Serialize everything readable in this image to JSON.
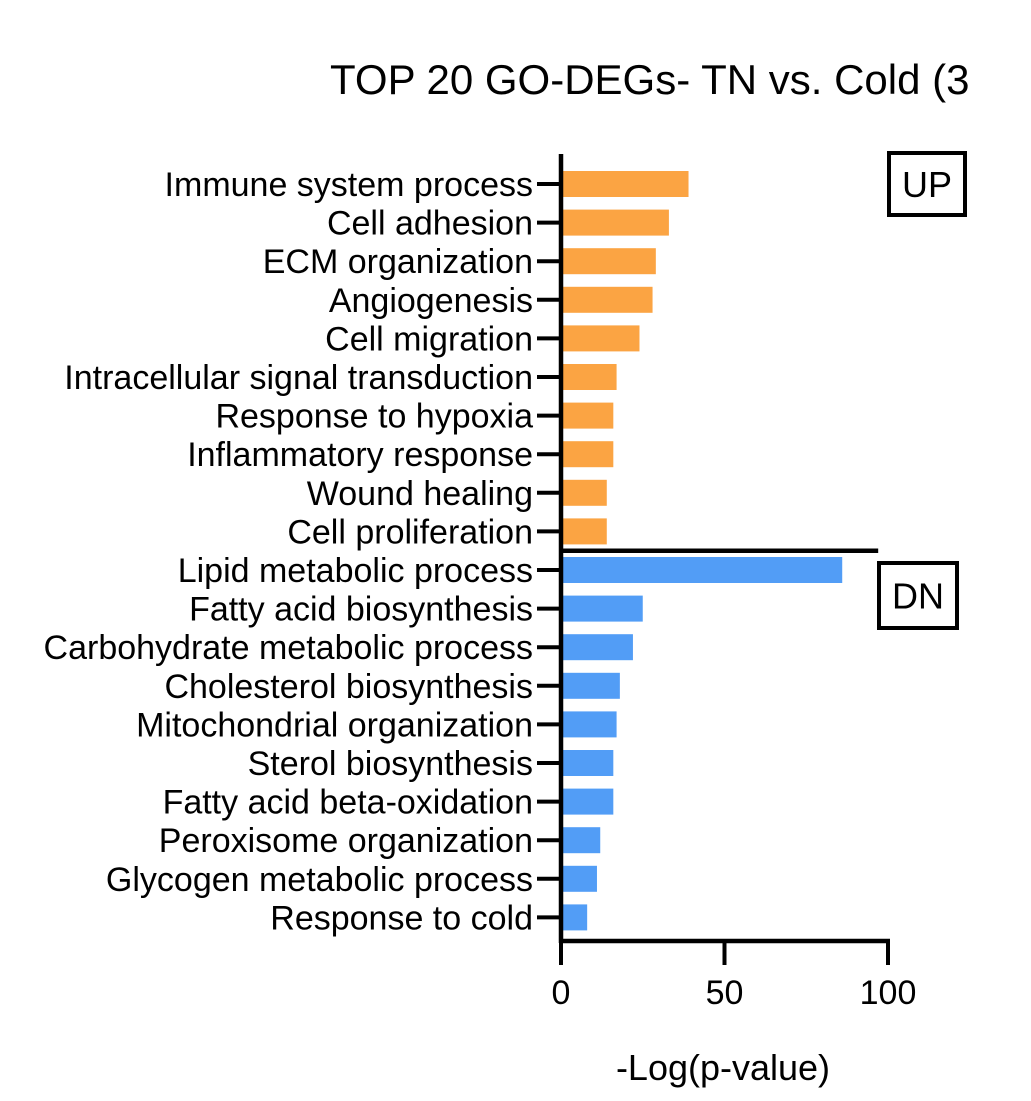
{
  "chart_data": {
    "type": "bar",
    "orientation": "horizontal",
    "title": "TOP 20 GO-DEGs- TN vs. Cold (3",
    "xlabel": "-Log(p-value)",
    "ylabel": "",
    "xlim": [
      0,
      100
    ],
    "xticks": [
      0,
      50,
      100
    ],
    "grid": false,
    "groups": [
      {
        "name": "UP",
        "color": "#FBA443",
        "categories": [
          "Immune system process",
          "Cell adhesion",
          "ECM organization",
          "Angiogenesis",
          "Cell migration",
          "Intracellular signal transduction ",
          "Response to hypoxia",
          "Inflammatory response",
          "Wound healing",
          "Cell proliferation"
        ],
        "values": [
          39,
          33,
          29,
          28,
          24,
          17,
          16,
          16,
          14,
          14
        ]
      },
      {
        "name": "DN",
        "color": "#529DF6",
        "categories": [
          "Lipid metabolic process",
          "Fatty acid biosynthesis",
          "Carbohydrate metabolic process",
          "Cholesterol biosynthesis",
          "Mitochondrial organization",
          "Sterol biosynthesis",
          "Fatty acid beta-oxidation",
          "Peroxisome organization",
          "Glycogen metabolic process",
          "Response to cold"
        ],
        "values": [
          86,
          25,
          22,
          18,
          17,
          16,
          16,
          12,
          11,
          8
        ]
      }
    ]
  }
}
